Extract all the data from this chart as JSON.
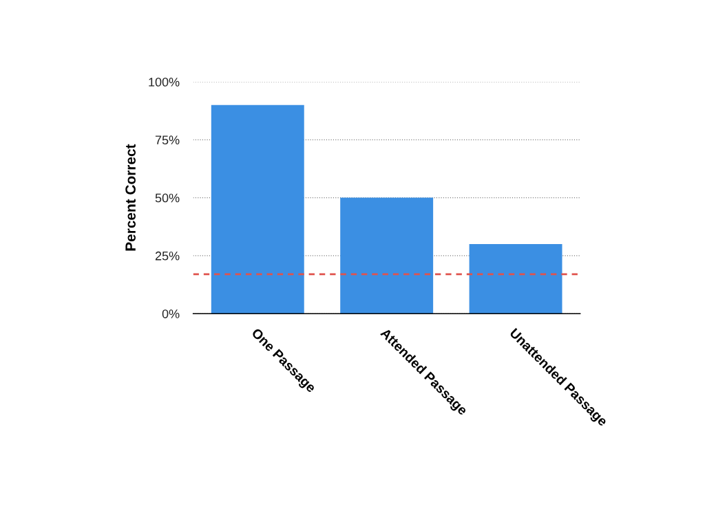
{
  "chart_data": {
    "type": "bar",
    "ylabel": "Percent Correct",
    "categories": [
      "One Passage",
      "Attended Passage",
      "Unattended Passage"
    ],
    "values": [
      90,
      50,
      30
    ],
    "color": "#3b8fe3",
    "ylim": [
      0,
      100
    ],
    "yticks": [
      {
        "value": 0,
        "label": "0%"
      },
      {
        "value": 25,
        "label": "25%"
      },
      {
        "value": 50,
        "label": "50%"
      },
      {
        "value": 75,
        "label": "75%"
      },
      {
        "value": 100,
        "label": "100%"
      }
    ],
    "grid": "y",
    "ref_lines": [
      {
        "axis": "y",
        "value": 17,
        "label": null,
        "color": "#e0534d",
        "line_style": "dashed"
      }
    ]
  }
}
